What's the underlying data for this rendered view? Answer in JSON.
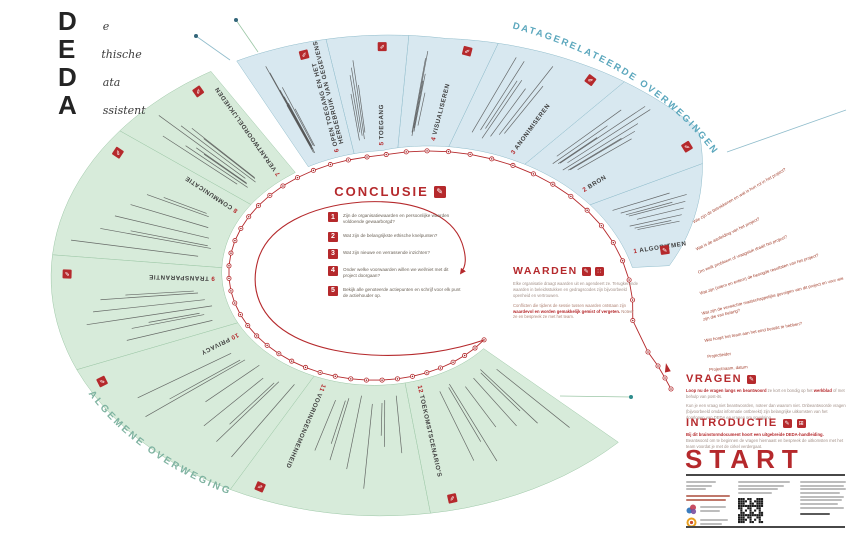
{
  "logo": {
    "rows": [
      {
        "big": "D",
        "small": "e"
      },
      {
        "big": "E",
        "small": "thische"
      },
      {
        "big": "D",
        "small": "ata"
      },
      {
        "big": "A",
        "small": "ssistent"
      }
    ]
  },
  "arc_labels": {
    "data_related": "DATAGERELATEERDE OVERWEGINGEN",
    "general": "ALGEMENE OVERWEGINGEN"
  },
  "wedges": [
    {
      "num": "1",
      "title": "ALGORITMEN",
      "group": "data",
      "lines": 6
    },
    {
      "num": "2",
      "title": "BRON",
      "group": "data",
      "lines": 7
    },
    {
      "num": "3",
      "title": "ANONIMISEREN",
      "group": "data",
      "lines": 5
    },
    {
      "num": "4",
      "title": "VISUALISEREN",
      "group": "data",
      "lines": 4
    },
    {
      "num": "5",
      "title": "TOEGANG",
      "group": "data",
      "lines": 4
    },
    {
      "num": "6",
      "title": "OPEN TOEGANG EN HET",
      "title2": "HERGEBRUIK VAN GEGEVENS",
      "group": "data",
      "lines": 6
    },
    {
      "num": "7",
      "title": "VERANTWOORDELIJKHEDEN",
      "group": "gen",
      "lines": 6
    },
    {
      "num": "8",
      "title": "COMMUNICATIE",
      "group": "gen",
      "lines": 5
    },
    {
      "num": "9",
      "title": "TRANSPARANTIE",
      "group": "gen",
      "lines": 5
    },
    {
      "num": "10",
      "title": "PRIVACY",
      "group": "gen",
      "lines": 6
    },
    {
      "num": "11",
      "title": "VOORINGENOMENHEID",
      "group": "gen",
      "lines": 6
    },
    {
      "num": "12",
      "title": "TOEKOMSTSCENARIO'S",
      "group": "gen",
      "lines": 6
    }
  ],
  "conclusie": {
    "title": "CONCLUSIE",
    "items": [
      {
        "num": "1",
        "text": "Zijn de organisatiewaarden en persoonlijke waarden voldoende gewaarborgd?"
      },
      {
        "num": "2",
        "text": "Wat zijn de belangrijkste ethische knelpunten?"
      },
      {
        "num": "3",
        "text": "Wat zijn nieuwe en verrassende inzichten?"
      },
      {
        "num": "4",
        "text": "Onder welke voorwaarden willen we wel/niet met dit project doorgaan?"
      },
      {
        "num": "5",
        "text": "Bekijk alle genoteerde actiepunten en schrijf voor elk punt de actiehouder op."
      }
    ]
  },
  "waarden": {
    "title": "WAARDEN",
    "p1": "Elke organisatie draagt waarden uit en agendeert ze. Terugkerende waarden in beleidsstukken en gedragscodes zijn bijvoorbeeld openheid en vertrouwen.",
    "p2_pre": "Conflicten die tijdens de sessie tussen waarden ontstaan zijn ",
    "p2_bold": "waardevol en worden gemakkelijk gemist of vergeten.",
    "p2_post": " Noteer ze en bespreek ze met het team."
  },
  "intro_questions": [
    "Wie zijn de betrokkenen en wat is hun rol in het project?",
    "Wat is de aanleiding van het project?",
    "Om welk probleem of vraagstuk draait het project?",
    "Wat zijn (intern en extern) de beoogde resultaten van het project?",
    "Wat zijn de verwachte maatschappelijke gevolgen van dit project en voor wie zijn die van belang?",
    "Wat hoopt het team aan het eind bereikt te hebben?",
    "Projectleider",
    "Projectnaam, datum"
  ],
  "vragen": {
    "title": "VRAGEN",
    "p1_lead": "Loop nu de vragen langs en beantwoord",
    "p1_mid": " ze kort en bondig op het ",
    "p1_bold": "werkblad",
    "p1_rest": " of met behulp van post-its.",
    "p2": "Kun je een vraag niet beantwoorden, noteer dan waarom niet. Onbeantwoorde vragen (bijvoorbeeld omdat informatie ontbreekt) zijn belangrijke uitkomsten van het doorlopen van DEDA en vragen om opvolging."
  },
  "introductie": {
    "title": "INTRODUCTIE",
    "p_lead": "Bij dit brainstormdocument hoort een uitgebreide ",
    "p_bold": "DEDA-handleiding.",
    "p_rest": " Beantwoord om te beginnen de vragen hiernaast en bespreek de uitkomsten met het team voordat je met de cirkel verdergaat."
  },
  "start_label": "START",
  "colors": {
    "accent": "#b5292c",
    "node_core": "#9c2023",
    "blue_fill": "#d8e8f0",
    "blue_stroke": "#8fbccb",
    "green_fill": "#d7ebda",
    "green_stroke": "#9cc7a6",
    "blue_label": "#5ba7bd",
    "green_label": "#7fb3a1",
    "line_text": "#4d4d4d"
  }
}
